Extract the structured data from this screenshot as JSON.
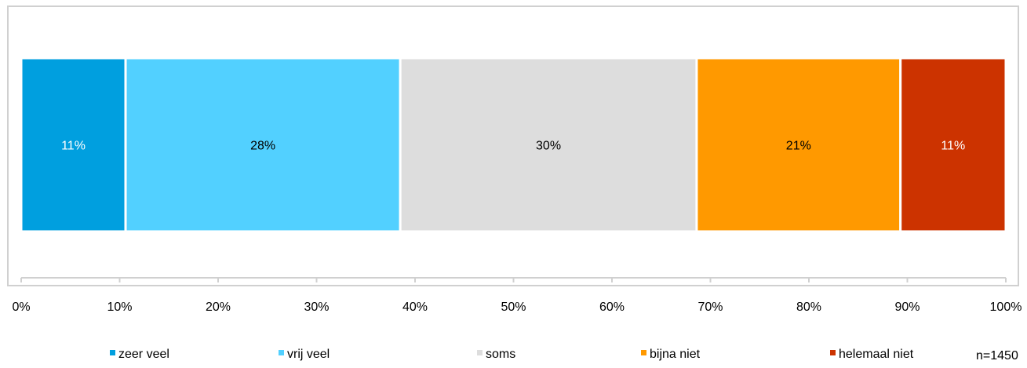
{
  "chart_data": {
    "type": "bar",
    "orientation": "horizontal",
    "stacked": "100%",
    "categories": [
      ""
    ],
    "series": [
      {
        "name": "zeer veel",
        "values": [
          11
        ],
        "label": "11%",
        "color": "#009FDF",
        "label_color": "#FFFFFF"
      },
      {
        "name": "vrij veel",
        "values": [
          28
        ],
        "label": "28%",
        "color": "#52D0FF",
        "label_color": "#000000"
      },
      {
        "name": "soms",
        "values": [
          30
        ],
        "label": "30%",
        "color": "#DDDDDD",
        "label_color": "#000000"
      },
      {
        "name": "bijna niet",
        "values": [
          21
        ],
        "label": "21%",
        "color": "#FF9900",
        "label_color": "#000000"
      },
      {
        "name": "helemaal niet",
        "values": [
          11
        ],
        "label": "11%",
        "color": "#CC3300",
        "label_color": "#FFFFFF"
      }
    ],
    "segment_widths": [
      10.6,
      27.9,
      30.1,
      20.7,
      10.7
    ],
    "xlim": [
      0,
      100
    ],
    "x_ticks": [
      0,
      10,
      20,
      30,
      40,
      50,
      60,
      70,
      80,
      90,
      100
    ],
    "x_tick_labels": [
      "0%",
      "10%",
      "20%",
      "30%",
      "40%",
      "50%",
      "60%",
      "70%",
      "80%",
      "90%",
      "100%"
    ],
    "title": "",
    "xlabel": "",
    "ylabel": "",
    "grid": false,
    "legend_position": "bottom"
  },
  "footnote": "n=1450"
}
